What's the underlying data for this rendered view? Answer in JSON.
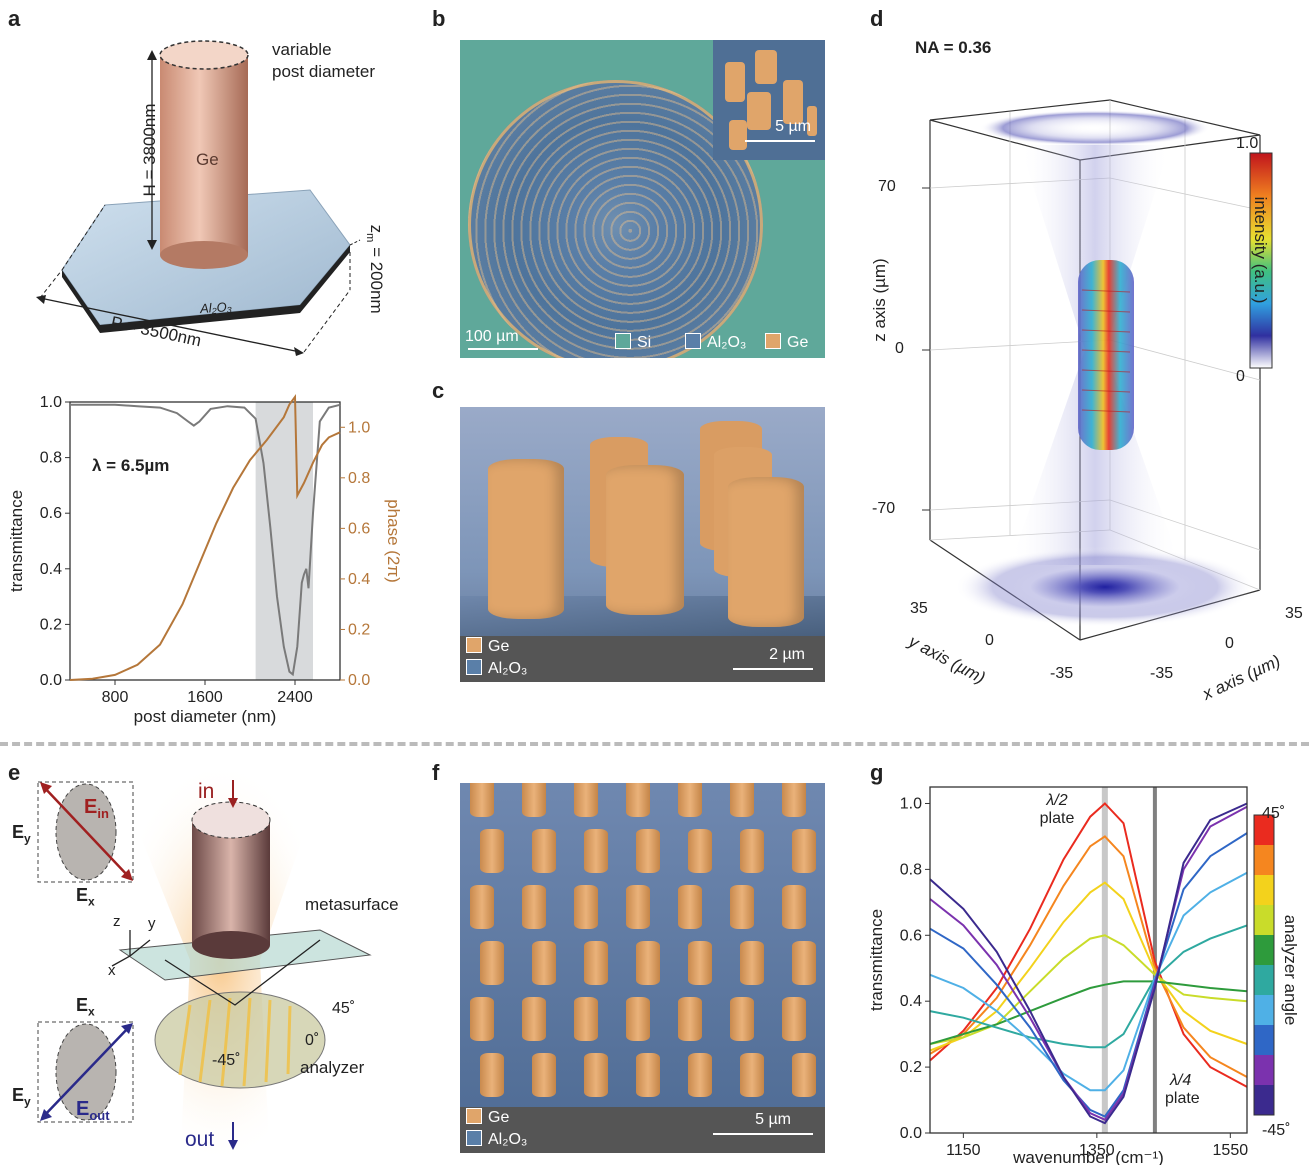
{
  "panels": {
    "a": "a",
    "b": "b",
    "c": "c",
    "d": "d",
    "e": "e",
    "f": "f",
    "g": "g"
  },
  "panel_a": {
    "post_label": "Ge",
    "substrate_label": "Al₂O₃",
    "variable_label_1": "variable",
    "variable_label_2": "post diameter",
    "height_label": "H = 3800nm",
    "zm_label": "z",
    "zm_sub": "m",
    "zm_value": " = 200nm",
    "period_label": "P = 3500nm"
  },
  "panel_b": {
    "scale_main": "100 µm",
    "scale_inset": "5 µm",
    "legend": [
      "Si",
      "Al₂O₃",
      "Ge"
    ],
    "colors": {
      "Si": "#5fa89a",
      "Al2O3": "#5a7fa8",
      "Ge": "#e0a56a"
    }
  },
  "panel_c": {
    "legend": [
      "Ge",
      "Al₂O₃"
    ],
    "scale": "2 µm"
  },
  "panel_d": {
    "na_label": "NA = 0.36",
    "z_axis": "z axis (µm)",
    "y_axis": "y axis (µm)",
    "x_axis": "x axis (µm)",
    "z_ticks": [
      "70",
      "0",
      "-70"
    ],
    "y_ticks": [
      "35",
      "0",
      "-35"
    ],
    "x_ticks": [
      "-35",
      "0",
      "35"
    ],
    "colorbar_label": "intensity (a.u.)",
    "colorbar_max": "1.0",
    "colorbar_min": "0"
  },
  "panel_e": {
    "in_label": "in",
    "out_label": "out",
    "metasurface_label": "metasurface",
    "analyzer_label": "analyzer",
    "angles": [
      "45˚",
      "0˚",
      "-45˚"
    ],
    "axes": [
      "z",
      "y",
      "x"
    ],
    "E_in": "in",
    "E_out": "out",
    "E_x": "x",
    "E_y": "y",
    "E_symbol": "E"
  },
  "panel_f": {
    "legend": [
      "Ge",
      "Al₂O₃"
    ],
    "scale": "5 µm"
  },
  "panel_g": {
    "ylabel": "transmittance",
    "xlabel": "wavenumber (cm⁻¹)",
    "half_plate_1": "λ/2",
    "half_plate_2": "plate",
    "quarter_plate_1": "λ/4",
    "quarter_plate_2": "plate",
    "colorbar_label": "analyzer angle",
    "colorbar_max": "45˚",
    "colorbar_min": "-45˚"
  },
  "chart_data": [
    {
      "type": "line",
      "panel": "a",
      "title": "",
      "annotation": "λ = 6.5µm",
      "xlabel": "post diameter (nm)",
      "ylabel": "transmittance",
      "y2label": "phase (2π)",
      "xlim": [
        400,
        2800
      ],
      "ylim": [
        0,
        1
      ],
      "y2lim": [
        0,
        1.1
      ],
      "xticks": [
        "800",
        "1600",
        "2400"
      ],
      "yticks": [
        "0.0",
        "0.2",
        "0.4",
        "0.6",
        "0.8",
        "1.0"
      ],
      "y2ticks": [
        "0.0",
        "0.2",
        "0.4",
        "0.6",
        "0.8",
        "1.0"
      ],
      "shaded_region": [
        2050,
        2560
      ],
      "series": [
        {
          "color": "#7a7a7a",
          "axis": "left",
          "x": [
            400,
            600,
            800,
            1000,
            1200,
            1350,
            1450,
            1500,
            1550,
            1650,
            1800,
            1950,
            2050,
            2120,
            2180,
            2240,
            2300,
            2350,
            2380,
            2420,
            2460,
            2480,
            2500,
            2520,
            2560,
            2620,
            2700,
            2800
          ],
          "y": [
            0.99,
            0.99,
            0.99,
            0.985,
            0.98,
            0.96,
            0.93,
            0.915,
            0.93,
            0.975,
            0.985,
            0.98,
            0.94,
            0.78,
            0.55,
            0.3,
            0.12,
            0.03,
            0.02,
            0.12,
            0.35,
            0.38,
            0.4,
            0.33,
            0.6,
            0.93,
            0.98,
            0.99
          ]
        },
        {
          "color": "#b5773a",
          "axis": "right",
          "x": [
            400,
            600,
            800,
            1000,
            1200,
            1400,
            1550,
            1700,
            1850,
            2000,
            2150,
            2300,
            2350,
            2400,
            2420,
            2480,
            2560,
            2640,
            2700,
            2800
          ],
          "y": [
            0.0,
            0.005,
            0.02,
            0.06,
            0.14,
            0.3,
            0.46,
            0.62,
            0.76,
            0.87,
            0.95,
            1.04,
            1.09,
            1.12,
            0.73,
            0.78,
            0.86,
            0.93,
            0.96,
            0.98
          ]
        }
      ]
    },
    {
      "type": "line",
      "panel": "g",
      "title": "",
      "xlabel": "wavenumber (cm⁻¹)",
      "ylabel": "transmittance",
      "xlim": [
        1100,
        1575
      ],
      "ylim": [
        0,
        1.05
      ],
      "xticks": [
        "1150",
        "1350",
        "1550"
      ],
      "yticks": [
        "0.0",
        "0.2",
        "0.4",
        "0.6",
        "0.8",
        "1.0"
      ],
      "vlines": [
        1362,
        1437
      ],
      "x": [
        1100,
        1150,
        1200,
        1250,
        1300,
        1340,
        1362,
        1390,
        1437,
        1480,
        1520,
        1575
      ],
      "series": [
        {
          "color": "#ea2b1f",
          "y": [
            0.22,
            0.31,
            0.44,
            0.62,
            0.83,
            0.96,
            1.0,
            0.94,
            0.52,
            0.3,
            0.2,
            0.14
          ]
        },
        {
          "color": "#f5861f",
          "y": [
            0.24,
            0.3,
            0.41,
            0.57,
            0.75,
            0.87,
            0.9,
            0.84,
            0.5,
            0.32,
            0.23,
            0.17
          ]
        },
        {
          "color": "#f3d21c",
          "y": [
            0.25,
            0.29,
            0.37,
            0.5,
            0.64,
            0.73,
            0.76,
            0.71,
            0.49,
            0.37,
            0.31,
            0.27
          ]
        },
        {
          "color": "#c9dc2a",
          "y": [
            0.27,
            0.29,
            0.33,
            0.43,
            0.53,
            0.59,
            0.6,
            0.57,
            0.48,
            0.42,
            0.41,
            0.4
          ]
        },
        {
          "color": "#2e9b3c",
          "y": [
            0.27,
            0.3,
            0.33,
            0.37,
            0.41,
            0.44,
            0.45,
            0.46,
            0.46,
            0.45,
            0.44,
            0.43
          ]
        },
        {
          "color": "#2fa9a0",
          "y": [
            0.37,
            0.35,
            0.32,
            0.29,
            0.27,
            0.26,
            0.26,
            0.3,
            0.47,
            0.55,
            0.59,
            0.63
          ]
        },
        {
          "color": "#4fb0e6",
          "y": [
            0.48,
            0.44,
            0.37,
            0.28,
            0.18,
            0.13,
            0.13,
            0.19,
            0.47,
            0.66,
            0.73,
            0.79
          ]
        },
        {
          "color": "#2f67c6",
          "y": [
            0.62,
            0.56,
            0.45,
            0.32,
            0.16,
            0.07,
            0.05,
            0.13,
            0.46,
            0.74,
            0.84,
            0.91
          ]
        },
        {
          "color": "#7b32ae",
          "y": [
            0.71,
            0.63,
            0.51,
            0.35,
            0.17,
            0.06,
            0.04,
            0.12,
            0.45,
            0.8,
            0.93,
            0.99
          ]
        },
        {
          "color": "#3b2a8e",
          "y": [
            0.77,
            0.68,
            0.55,
            0.37,
            0.17,
            0.05,
            0.03,
            0.11,
            0.44,
            0.82,
            0.95,
            1.0
          ]
        }
      ],
      "colorbar": [
        "#ea2b1f",
        "#f5861f",
        "#f3d21c",
        "#c9dc2a",
        "#2e9b3c",
        "#2fa9a0",
        "#4fb0e6",
        "#2f67c6",
        "#7b32ae",
        "#3b2a8e"
      ]
    }
  ]
}
